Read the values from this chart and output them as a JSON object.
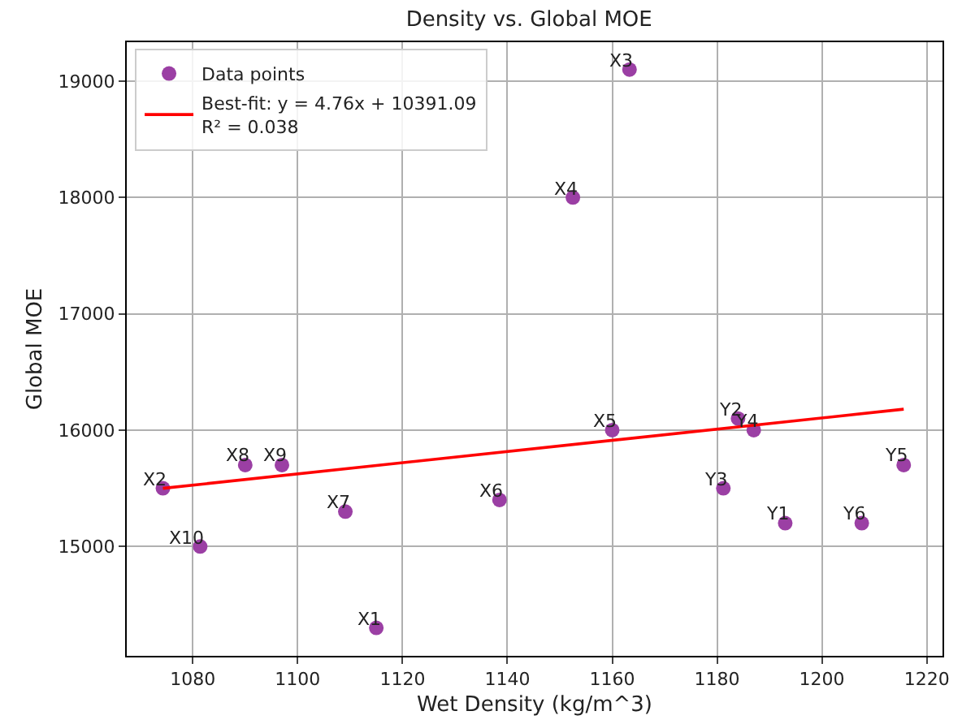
{
  "chart_data": {
    "type": "scatter",
    "title": "Density vs. Global MOE",
    "xlabel": "Wet Density (kg/m^3)",
    "ylabel": "Global MOE",
    "xlim": [
      1067.4,
      1223
    ],
    "ylim": [
      14060,
      19335
    ],
    "xticks": [
      1080,
      1100,
      1120,
      1140,
      1160,
      1180,
      1200,
      1220
    ],
    "yticks": [
      15000,
      16000,
      17000,
      18000,
      19000
    ],
    "grid": true,
    "legend": "top left",
    "marker": "circle",
    "series": [
      {
        "name": "Data points",
        "color": "#9b3fa4",
        "x": [
          1115,
          1074.3,
          1163.3,
          1152.5,
          1160,
          1138.5,
          1109.1,
          1090,
          1097,
          1081.4,
          1193,
          1184,
          1181.2,
          1187,
          1215.6,
          1207.6
        ],
        "values": [
          14300,
          15500,
          19100,
          18000,
          16000,
          15400,
          15300,
          15700,
          15700,
          15000,
          15200,
          16100,
          15500,
          16000,
          15700,
          15200
        ]
      },
      {
        "name": "Best-fit: y = 4.76x + 10391.09\nR² = 0.038",
        "type": "line",
        "color": "#ff0000",
        "line_style": "solid",
        "marker": "none",
        "x": [
          1074.3,
          1215.6
        ],
        "values": [
          15500,
          16180
        ]
      }
    ],
    "annotations": [
      {
        "text": "X1",
        "x": 1115,
        "y": 14300
      },
      {
        "text": "X2",
        "x": 1074.3,
        "y": 15500
      },
      {
        "text": "X3",
        "x": 1163.3,
        "y": 19100
      },
      {
        "text": "X4",
        "x": 1152.5,
        "y": 18000
      },
      {
        "text": "X5",
        "x": 1160,
        "y": 16000
      },
      {
        "text": "X6",
        "x": 1138.5,
        "y": 15400
      },
      {
        "text": "X7",
        "x": 1109.1,
        "y": 15300
      },
      {
        "text": "X8",
        "x": 1090,
        "y": 15700
      },
      {
        "text": "X9",
        "x": 1097,
        "y": 15700
      },
      {
        "text": "X10",
        "x": 1081.4,
        "y": 15000
      },
      {
        "text": "Y1",
        "x": 1193,
        "y": 15200
      },
      {
        "text": "Y2",
        "x": 1184,
        "y": 16100
      },
      {
        "text": "Y3",
        "x": 1181.2,
        "y": 15500
      },
      {
        "text": "Y4",
        "x": 1187,
        "y": 16000
      },
      {
        "text": "Y5",
        "x": 1215.6,
        "y": 15700
      },
      {
        "text": "Y6",
        "x": 1207.6,
        "y": 15200
      }
    ]
  }
}
